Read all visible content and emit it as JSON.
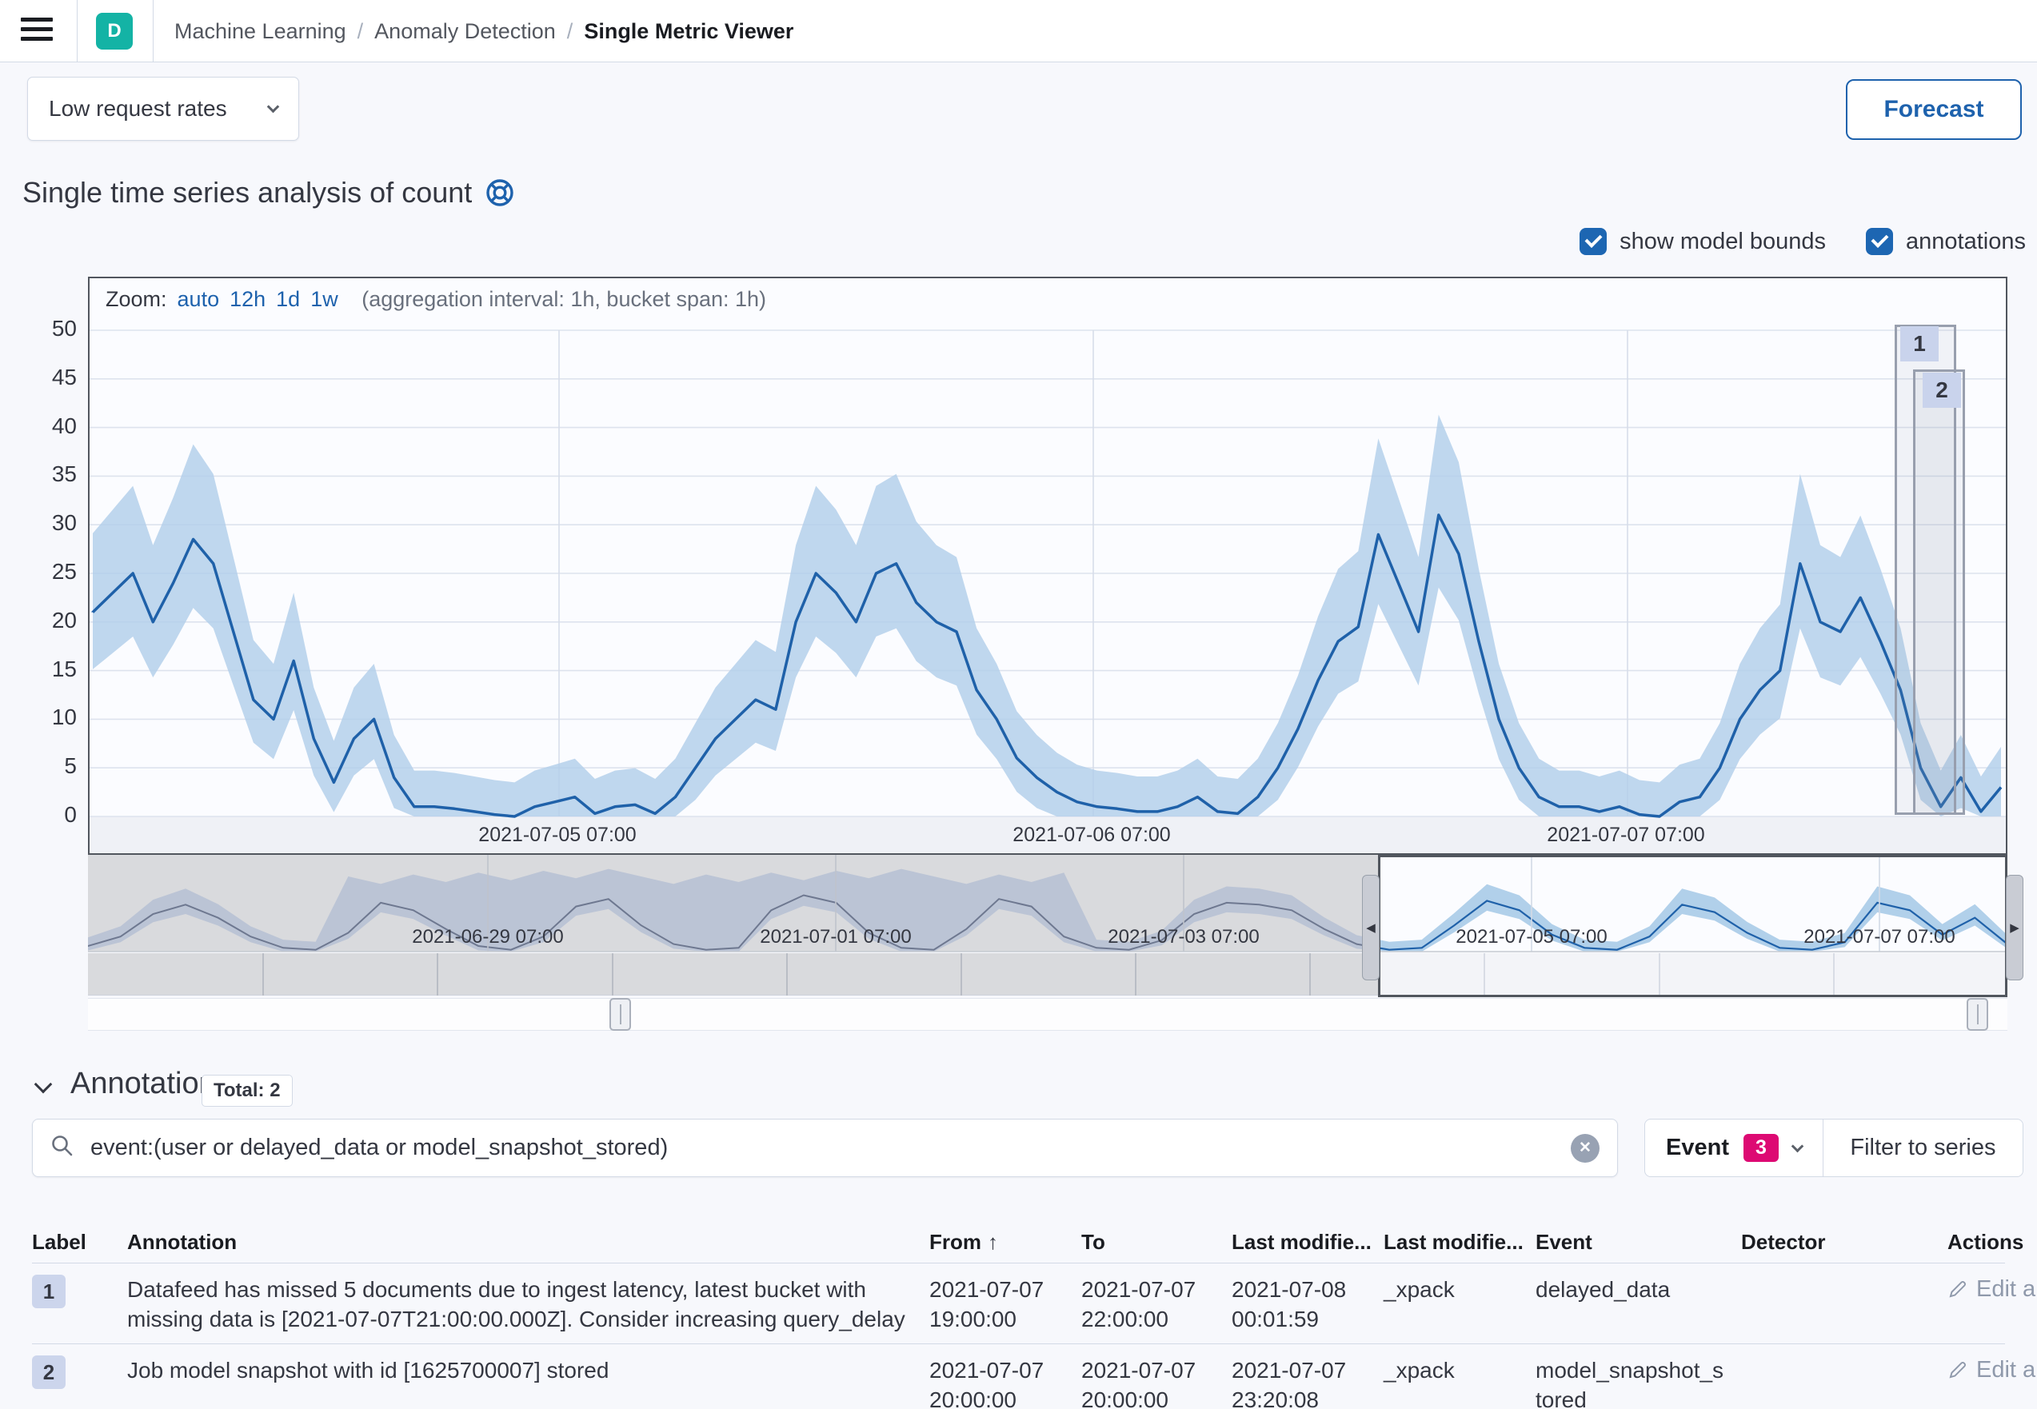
{
  "header": {
    "app_badge": "D",
    "breadcrumbs": [
      "Machine Learning",
      "Anomaly Detection",
      "Single Metric Viewer"
    ]
  },
  "toolbar": {
    "job_selector": "Low request rates",
    "forecast_label": "Forecast"
  },
  "title": {
    "text": "Single time series analysis of count"
  },
  "controls": {
    "show_model_bounds": "show model bounds",
    "annotations": "annotations"
  },
  "chart": {
    "zoom_label": "Zoom:",
    "zoom_links": [
      "auto",
      "12h",
      "1d",
      "1w"
    ],
    "aggregation_note": "(aggregation interval: 1h, bucket span: 1h)"
  },
  "chart_data": {
    "type": "line",
    "title": "Single time series analysis of count",
    "series_name": "count",
    "main": {
      "ylim": [
        0,
        50
      ],
      "y_ticks": [
        0,
        5,
        10,
        15,
        20,
        25,
        30,
        35,
        40,
        45,
        50
      ],
      "x_ticks": [
        "2021-07-05 07:00",
        "2021-07-06 07:00",
        "2021-07-07 07:00"
      ],
      "values": [
        21,
        23,
        25,
        20,
        24,
        28.5,
        26,
        19,
        12,
        10,
        16,
        8,
        3.5,
        8,
        10,
        4,
        1,
        1,
        0.8,
        0.5,
        0.2,
        0,
        1,
        1.5,
        2,
        0.3,
        1,
        1.2,
        0.3,
        2,
        5,
        8,
        10,
        12,
        11,
        20,
        25,
        23,
        20,
        25,
        26,
        22,
        20,
        19,
        13,
        10,
        6,
        4,
        2.5,
        1.5,
        1,
        0.8,
        0.5,
        0.5,
        1,
        2,
        0.5,
        0.3,
        2,
        5,
        9,
        14,
        18,
        19.5,
        29,
        24,
        19,
        31,
        27,
        18,
        10,
        5,
        2,
        1,
        1,
        0.5,
        1,
        0.2,
        0,
        1.5,
        2,
        5,
        10,
        13,
        15,
        26,
        20,
        19,
        22.5,
        18,
        13,
        5,
        1,
        4,
        0.5,
        3
      ],
      "has_model_bounds": true
    },
    "context": {
      "x_ticks": [
        "2021-06-29 07:00",
        "2021-07-01 07:00",
        "2021-07-03 07:00",
        "2021-07-05 07:00",
        "2021-07-07 07:00"
      ],
      "values": [
        3,
        8,
        20,
        25,
        18,
        8,
        2,
        1,
        10,
        26,
        22,
        12,
        3,
        1,
        8,
        24,
        28,
        14,
        4,
        1,
        2,
        22,
        30,
        26,
        10,
        2,
        1,
        12,
        28,
        24,
        8,
        2,
        1,
        6,
        20,
        26,
        25,
        22,
        12,
        4,
        1,
        2,
        14,
        27,
        22,
        9,
        2,
        1,
        8,
        25,
        21,
        10,
        2,
        1,
        5,
        26,
        22,
        9,
        18,
        4
      ],
      "selection_fraction": [
        0.672,
        1.0
      ]
    },
    "annotation_markers": [
      {
        "label": "1"
      },
      {
        "label": "2"
      }
    ]
  },
  "annotations_section": {
    "title": "Annotations",
    "total_badge": "Total: 2",
    "search_value": "event:(user or delayed_data or model_snapshot_stored)",
    "event_filter_label": "Event",
    "event_filter_count": "3",
    "filter_to_series": "Filter to series"
  },
  "table": {
    "headers": [
      "Label",
      "Annotation",
      "From",
      "To",
      "Last modifie...",
      "Last modifie...",
      "Event",
      "Detector",
      "Actions"
    ],
    "sorted_column": "From",
    "rows": [
      {
        "label": "1",
        "annotation": "Datafeed has missed 5 documents due to ingest latency, latest bucket with missing data is [2021-07-07T21:00:00.000Z]. Consider increasing query_delay",
        "from": "2021-07-07 19:00:00",
        "to": "2021-07-07 22:00:00",
        "modified_date": "2021-07-08 00:01:59",
        "modified_by": "_xpack",
        "event": "delayed_data",
        "detector": "",
        "action": "Edit annotation"
      },
      {
        "label": "2",
        "annotation": "Job model snapshot with id [1625700007] stored",
        "from": "2021-07-07 20:00:00",
        "to": "2021-07-07 20:00:00",
        "modified_date": "2021-07-07 23:20:08",
        "modified_by": "_xpack",
        "event": "model_snapshot_stored",
        "detector": "",
        "action": "Edit annotation"
      }
    ]
  },
  "icons": {
    "menu": "hamburger-menu",
    "title_help": "life-ring-help",
    "job_selector": "chevron-down",
    "annotations_collapse": "chevron-down",
    "event_dropdown": "chevron-down",
    "search": "magnifier",
    "clear_search": "circle-x",
    "sort_from": "arrow-up",
    "edit": "pencil",
    "brush_left": "arrow-left",
    "brush_right": "arrow-right"
  },
  "colors": {
    "primary_blue": "#1e62ad",
    "line_blue": "#1f61a9",
    "band_blue": "#b0cdea",
    "accent_pink": "#dd0a73",
    "app_teal": "#14b3a5",
    "annotation_badge": "#c9d3ec"
  }
}
